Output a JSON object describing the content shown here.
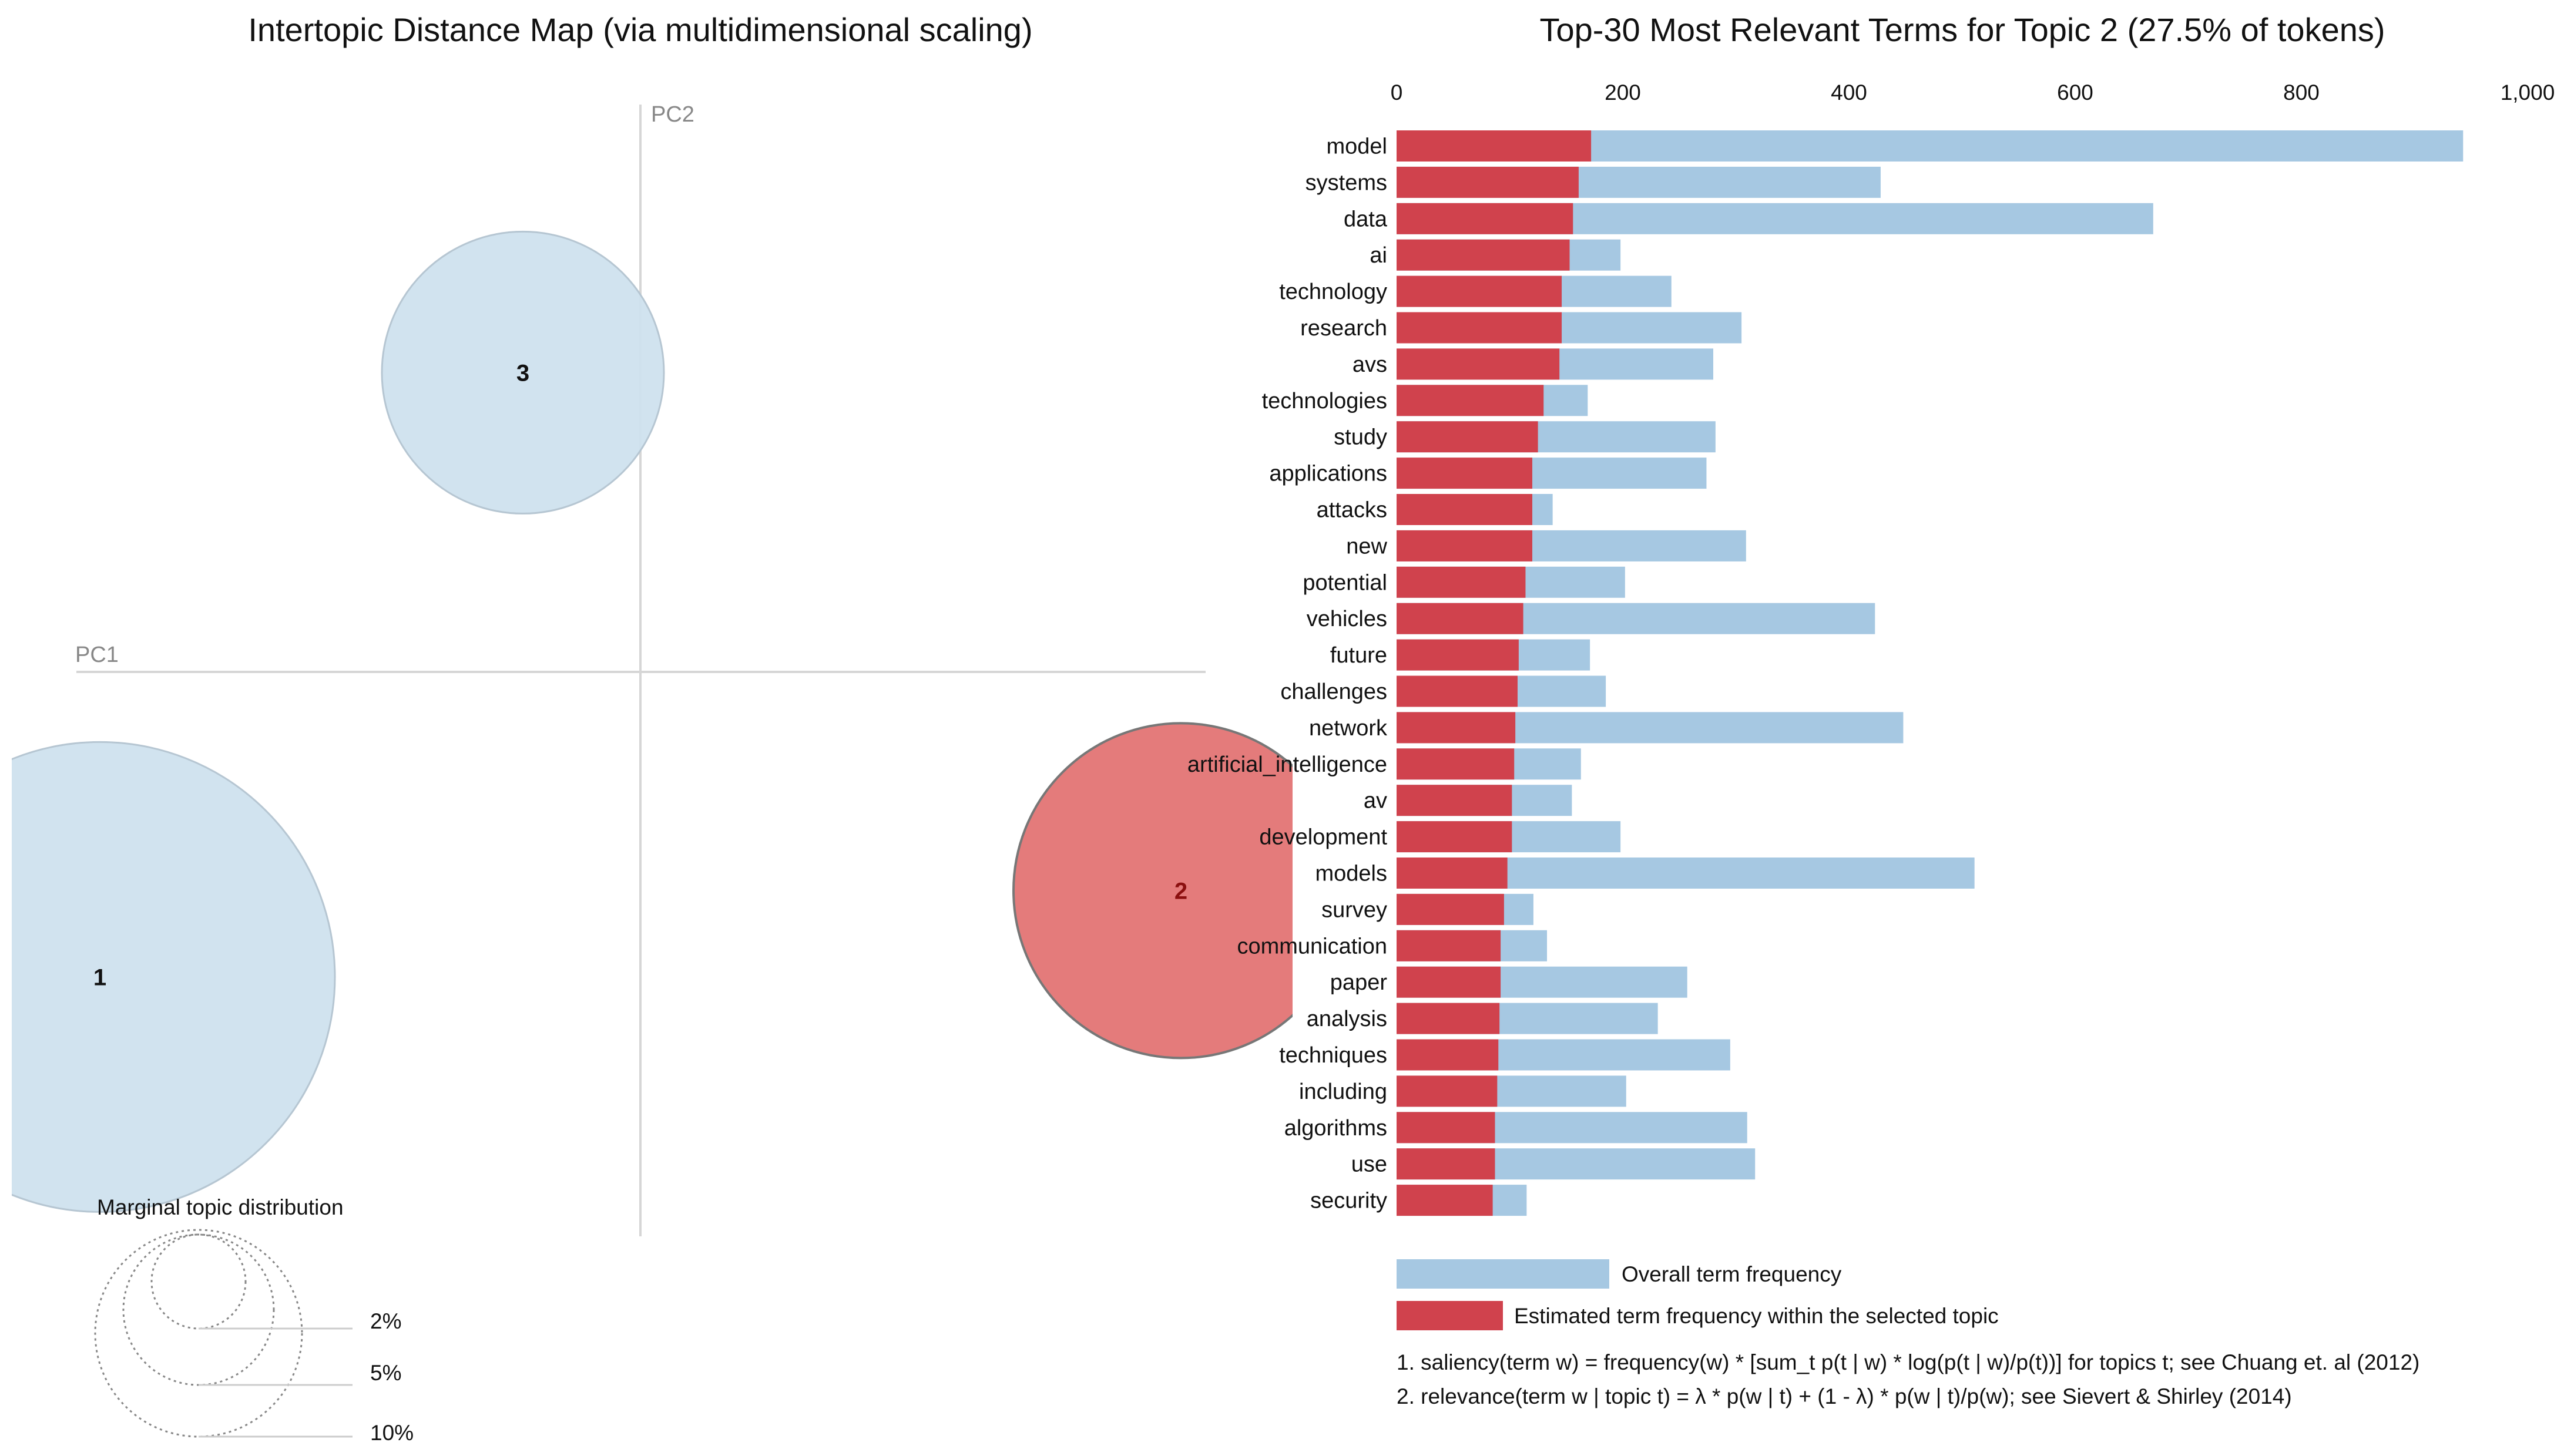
{
  "mds": {
    "title": "Intertopic Distance Map (via multidimensional scaling)",
    "pc1_label": "PC1",
    "pc2_label": "PC2",
    "topics": [
      {
        "id": "1",
        "x": -0.92,
        "y": -0.53,
        "selected": false
      },
      {
        "id": "2",
        "x": 0.92,
        "y": -0.38,
        "selected": true
      },
      {
        "id": "3",
        "x": -0.2,
        "y": 0.52,
        "selected": false
      }
    ],
    "marginal": {
      "title": "Marginal topic distribution",
      "levels": [
        "2%",
        "5%",
        "10%"
      ]
    }
  },
  "bars_panel": {
    "title": "Top-30 Most Relevant Terms for Topic 2 (27.5% of tokens)",
    "legend_overall": "Overall term frequency",
    "legend_estimated": "Estimated term frequency within the selected topic",
    "footnote1": "1. saliency(term w) = frequency(w) * [sum_t p(t | w) * log(p(t | w)/p(t))] for topics t; see Chuang et. al (2012)",
    "footnote2": "2. relevance(term w | topic t) = λ * p(w | t) + (1 - λ) * p(w | t)/p(w); see Sievert & Shirley (2014)"
  },
  "chart_data": {
    "type": "bar",
    "orientation": "horizontal",
    "title": "Top-30 Most Relevant Terms for Topic 2 (27.5% of tokens)",
    "xlim": [
      0,
      1000
    ],
    "x_ticks": [
      0,
      200,
      400,
      600,
      800,
      1000
    ],
    "x_tick_labels": [
      "0",
      "200",
      "400",
      "600",
      "800",
      "1,000"
    ],
    "categories": [
      "model",
      "systems",
      "data",
      "ai",
      "technology",
      "research",
      "avs",
      "technologies",
      "study",
      "applications",
      "attacks",
      "new",
      "potential",
      "vehicles",
      "future",
      "challenges",
      "network",
      "artificial_intelligence",
      "av",
      "development",
      "models",
      "survey",
      "communication",
      "paper",
      "analysis",
      "techniques",
      "including",
      "algorithms",
      "use",
      "security"
    ],
    "series": [
      {
        "name": "Overall term frequency",
        "color": "#a6c8e2",
        "values": [
          943,
          428,
          669,
          198,
          243,
          305,
          280,
          169,
          282,
          274,
          138,
          309,
          202,
          423,
          171,
          185,
          448,
          163,
          155,
          198,
          511,
          121,
          133,
          257,
          231,
          295,
          203,
          310,
          317,
          115
        ]
      },
      {
        "name": "Estimated term frequency within the selected topic",
        "color": "#d0424d",
        "values": [
          172,
          161,
          156,
          153,
          146,
          146,
          144,
          130,
          125,
          120,
          120,
          120,
          114,
          112,
          108,
          107,
          105,
          104,
          102,
          102,
          98,
          95,
          92,
          92,
          91,
          90,
          89,
          87,
          87,
          85
        ]
      }
    ]
  }
}
